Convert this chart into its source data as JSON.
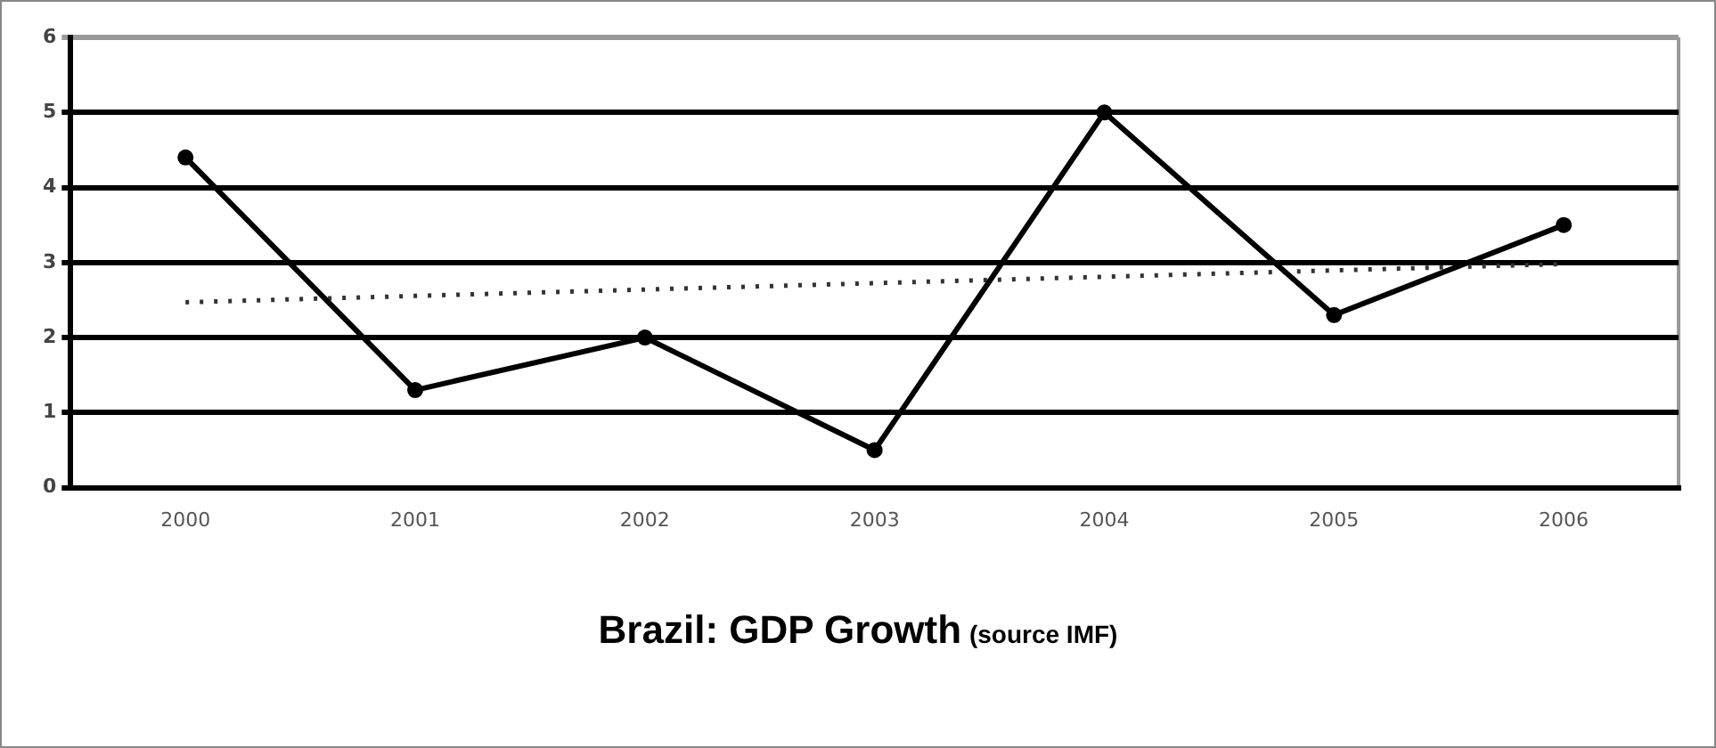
{
  "chart_data": {
    "type": "line",
    "title": "Brazil: GDP Growth",
    "annotations": [
      "(source IMF)"
    ],
    "categories": [
      "2000",
      "2001",
      "2002",
      "2003",
      "2004",
      "2005",
      "2006"
    ],
    "series": [
      {
        "color": "#000000",
        "values": [
          4.4,
          1.3,
          2.0,
          0.5,
          5.0,
          2.3,
          3.5
        ],
        "marker": "circle",
        "line_style": "solid"
      },
      {
        "type": "line",
        "color": "#333333",
        "values": [
          2.47,
          null,
          null,
          null,
          null,
          null,
          2.98
        ],
        "marker": "none",
        "line_style": "dotted"
      }
    ],
    "ylim": [
      0,
      6
    ],
    "yticks": [
      0,
      1,
      2,
      3,
      4,
      5,
      6
    ],
    "grid": "y",
    "legend": false
  }
}
